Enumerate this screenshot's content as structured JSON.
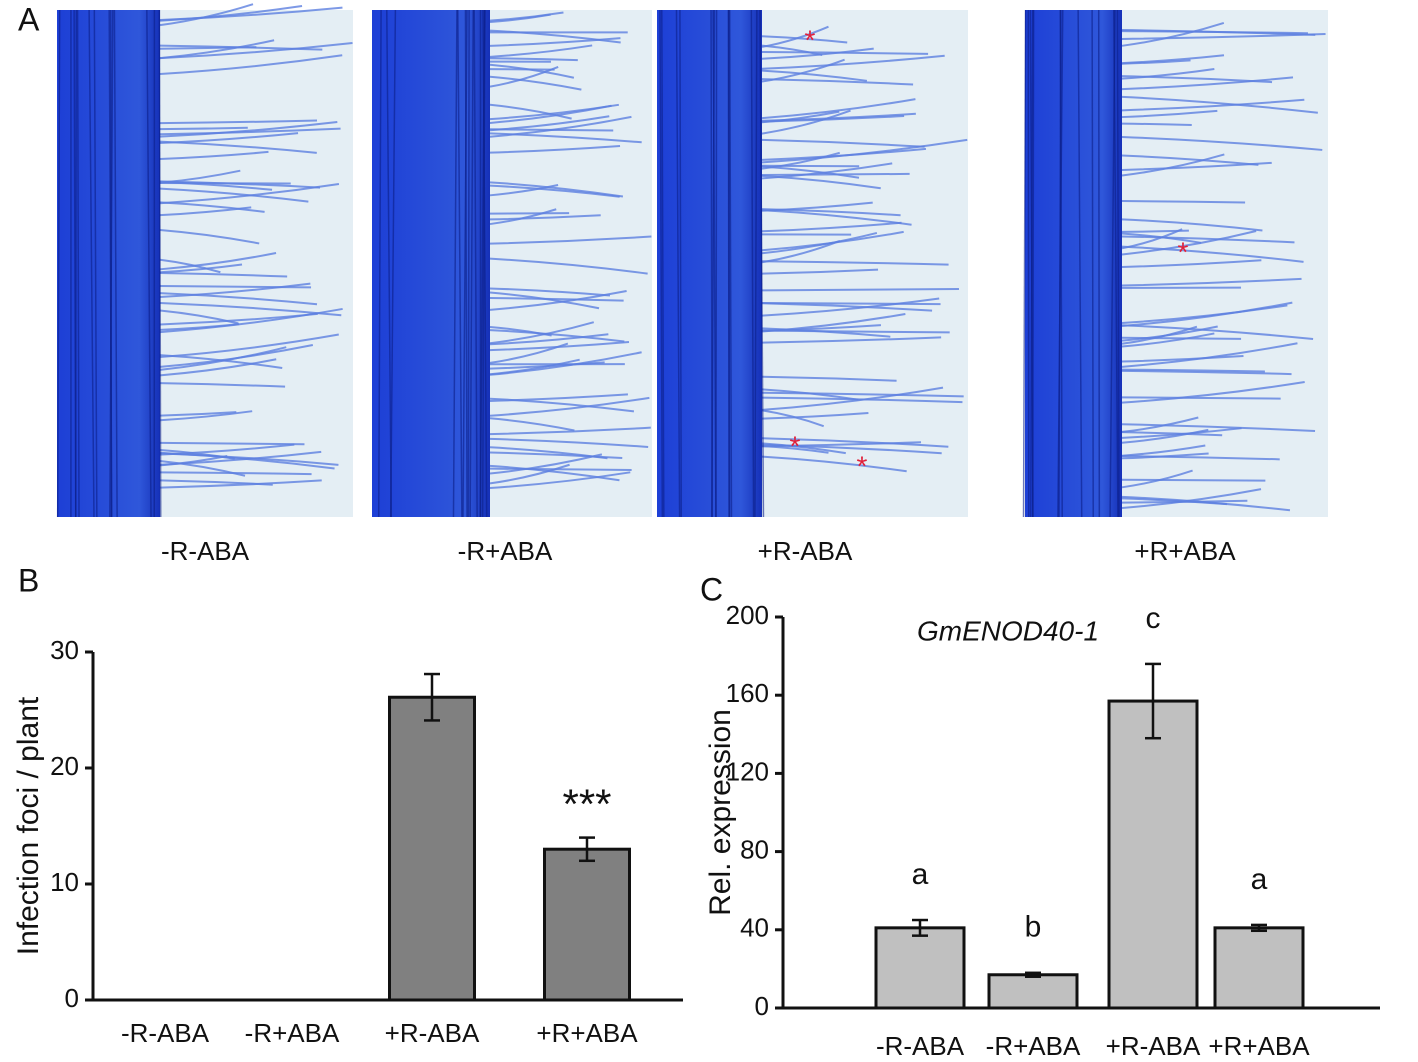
{
  "panels": {
    "A": {
      "label": "A",
      "captions": [
        "-R-ABA",
        "-R+ABA",
        "+R-ABA",
        "+R+ABA"
      ],
      "asterisk": "*"
    }
  },
  "chart_data": [
    {
      "type": "bar",
      "panel": "B",
      "ylabel": "Infection foci / plant",
      "categories": [
        "-R-ABA",
        "-R+ABA",
        "+R-ABA",
        "+R+ABA"
      ],
      "values": [
        0,
        0,
        26.1,
        13
      ],
      "errors": [
        0,
        0,
        2,
        1
      ],
      "annotations": [
        null,
        null,
        null,
        "***"
      ],
      "color": "#808080",
      "ylim": [
        0,
        30
      ],
      "yticks": [
        0,
        10,
        20,
        30
      ]
    },
    {
      "type": "bar",
      "panel": "C",
      "title": "GmENOD40-1",
      "ylabel": "Rel. expression",
      "categories": [
        "-R-ABA",
        "-R+ABA",
        "+R-ABA",
        "+R+ABA"
      ],
      "values": [
        41,
        17,
        157,
        41
      ],
      "errors": [
        4,
        1,
        19,
        1.5
      ],
      "annotations": [
        "a",
        "b",
        "c",
        "a"
      ],
      "color": "#c0c0c0",
      "ylim": [
        0,
        200
      ],
      "yticks": [
        0,
        40,
        80,
        120,
        160,
        200
      ]
    }
  ]
}
